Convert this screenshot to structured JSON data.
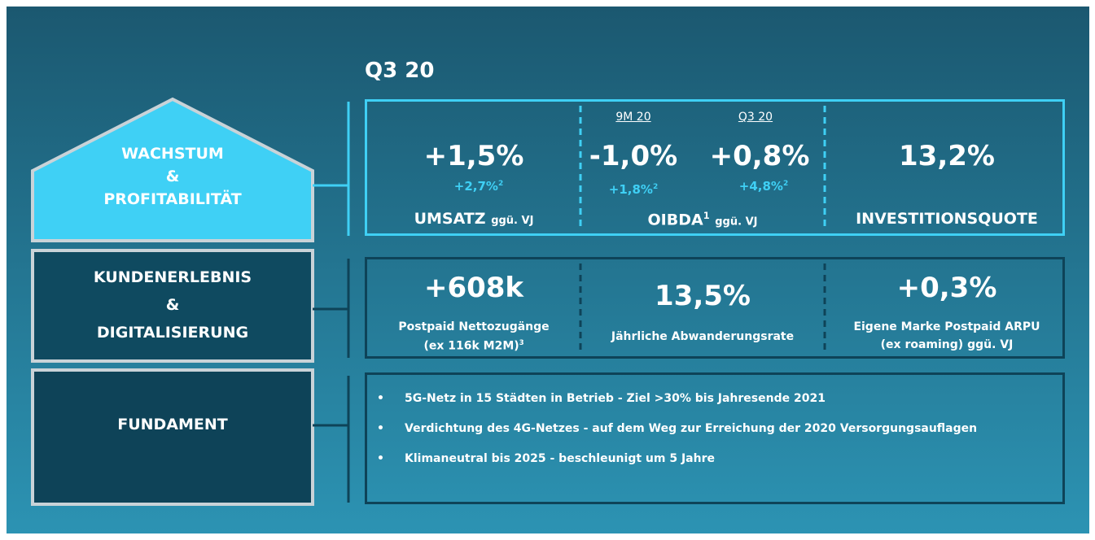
{
  "title": "Q3 20",
  "pillars": [
    {
      "lines": [
        "WACHSTUM",
        "&",
        "PROFITABILITÄT"
      ]
    },
    {
      "lines": [
        "KUNDENERLEBNIS",
        "&",
        "DIGITALISIERUNG"
      ]
    },
    {
      "lines": [
        "FUNDAMENT"
      ]
    }
  ],
  "growth": {
    "umsatz": {
      "value": "+1,5%",
      "sub": "+2,7%",
      "sub_sup": "2",
      "label": "UMSATZ",
      "suffix": "ggü. VJ"
    },
    "oibda": {
      "periods": [
        "9M 20",
        "Q3 20"
      ],
      "values": [
        "-1,0%",
        "+0,8%"
      ],
      "subs": [
        "+1,8%",
        "+4,8%"
      ],
      "sub_sups": [
        "2",
        "2"
      ],
      "label": "OIBDA",
      "label_sup": "1",
      "suffix": "ggü. VJ"
    },
    "capex": {
      "value": "13,2%",
      "label": "INVESTITIONSQUOTE"
    }
  },
  "customer": [
    {
      "value": "+608k",
      "lines": [
        "Postpaid Nettozugänge",
        "(ex 116k M2M)"
      ],
      "sup": "3"
    },
    {
      "value": "13,5%",
      "lines": [
        "Jährliche Abwanderungsrate"
      ]
    },
    {
      "value": "+0,3%",
      "lines": [
        "Eigene Marke Postpaid ARPU",
        "(ex roaming) ggü. VJ"
      ]
    }
  ],
  "foundation": {
    "bullets": [
      "5G-Netz in 15 Städten in Betrieb - Ziel >30% bis Jahresende 2021",
      "Verdichtung des 4G-Netzes - auf dem Weg zur Erreichung der 2020 Versorgungsauflagen",
      "Klimaneutral bis 2025 - beschleunigt um 5 Jahre"
    ]
  }
}
